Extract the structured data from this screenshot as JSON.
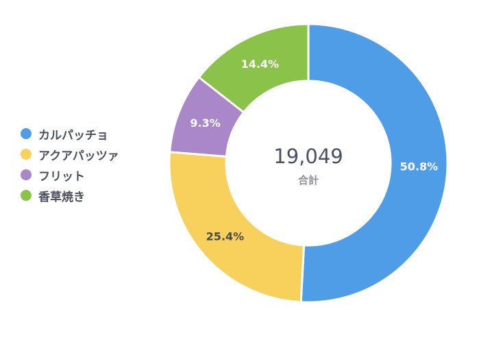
{
  "chart_data": {
    "type": "pie",
    "donut": true,
    "categories": [
      "カルパッチョ",
      "アクアパッツァ",
      "フリット",
      "香草焼き"
    ],
    "values": [
      50.8,
      25.4,
      9.3,
      14.4
    ],
    "value_labels": [
      "50.8%",
      "25.4%",
      "9.3%",
      "14.4%"
    ],
    "colors": [
      "#4f9de6",
      "#f8d05c",
      "#a987c9",
      "#8bc34a"
    ],
    "center_total": "19,049",
    "center_label": "合計",
    "legend_position": "left"
  }
}
